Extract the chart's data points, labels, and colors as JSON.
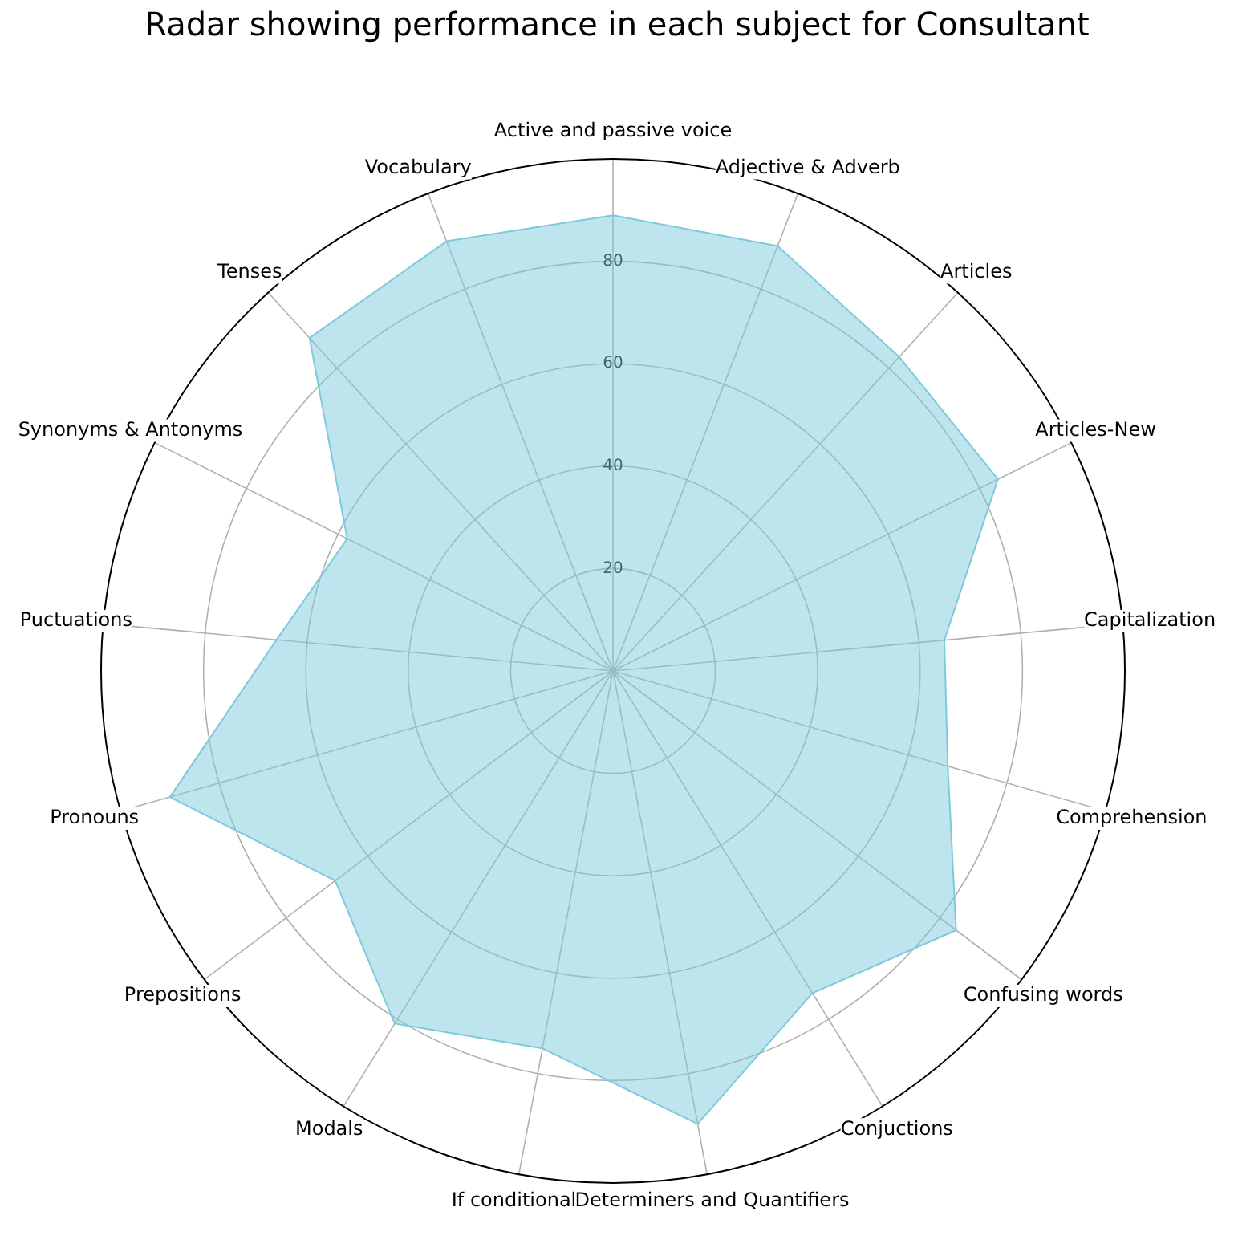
{
  "chart_data": {
    "type": "radar",
    "title": "Radar showing performance in each subject for Consultant",
    "categories": [
      "Active and passive voice",
      "Adjective & Adverb",
      "Articles",
      "Articles-New",
      "Capitalization",
      "Comprehension",
      "Confusing words",
      "Conjuctions",
      "Determiners and Quantifiers",
      "If conditional",
      "Modals",
      "Prepositions",
      "Pronouns",
      "Puctuations",
      "Synonyms & Antonyms",
      "Tenses",
      "Vocabulary"
    ],
    "series": [
      {
        "color": "#7ec9dc",
        "values": [
          89,
          89,
          83,
          84,
          65,
          68,
          84,
          74,
          90,
          75,
          81,
          68,
          90,
          66,
          58,
          88,
          90
        ]
      }
    ],
    "ylim": [
      0,
      100
    ],
    "yticks": [
      20,
      40,
      60,
      80
    ],
    "grid": true
  }
}
